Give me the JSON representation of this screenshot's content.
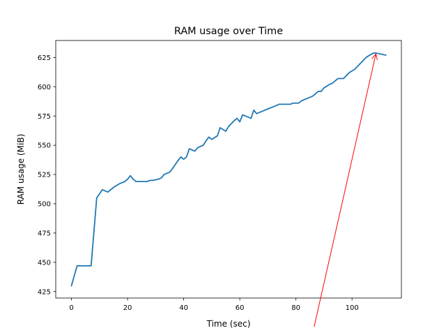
{
  "chart_data": {
    "type": "line",
    "title": "RAM usage over Time",
    "xlabel": "Time (sec)",
    "ylabel": "RAM usage (MiB)",
    "xlim": [
      -5.6,
      117.6
    ],
    "ylim": [
      419.5,
      639.5
    ],
    "x_ticks": [
      0,
      20,
      40,
      60,
      80,
      100
    ],
    "y_ticks": [
      425,
      450,
      475,
      500,
      525,
      550,
      575,
      600,
      625
    ],
    "grid": false,
    "legend": "none",
    "series": [
      {
        "color": "#1f77b4",
        "x": [
          0,
          2,
          4,
          7,
          9,
          11,
          13,
          15,
          17,
          19,
          20,
          21,
          22,
          23,
          24,
          25,
          27,
          28,
          29,
          31,
          32,
          33,
          35,
          36,
          38,
          39,
          40,
          41,
          42,
          44,
          45,
          47,
          48,
          49,
          50,
          52,
          53,
          55,
          56,
          58,
          59,
          60,
          61,
          62,
          64,
          65,
          66,
          68,
          70,
          72,
          74,
          76,
          78,
          79,
          81,
          82,
          84,
          86,
          88,
          89,
          90,
          92,
          93,
          95,
          97,
          99,
          101,
          103,
          105,
          107,
          108,
          110,
          112
        ],
        "y": [
          430,
          447,
          447,
          447,
          505,
          512,
          510,
          514,
          517,
          519,
          521,
          524,
          521,
          519,
          519,
          519,
          519,
          520,
          520,
          521,
          522,
          525,
          527,
          530,
          537,
          540,
          538,
          540,
          547,
          545,
          548,
          550,
          554,
          557,
          555,
          558,
          565,
          562,
          566,
          571,
          573,
          570,
          576,
          575,
          573,
          580,
          577,
          579,
          581,
          583,
          585,
          585,
          585,
          586,
          586,
          588,
          590,
          592,
          596,
          596,
          599,
          602,
          603,
          607,
          607,
          612,
          615,
          620,
          625,
          628,
          629,
          628,
          627
        ]
      }
    ],
    "annotations": [
      {
        "type": "arrow",
        "color": "#ff0000",
        "from": [
          86.5,
          395
        ],
        "to": [
          108.5,
          628
        ]
      }
    ]
  }
}
